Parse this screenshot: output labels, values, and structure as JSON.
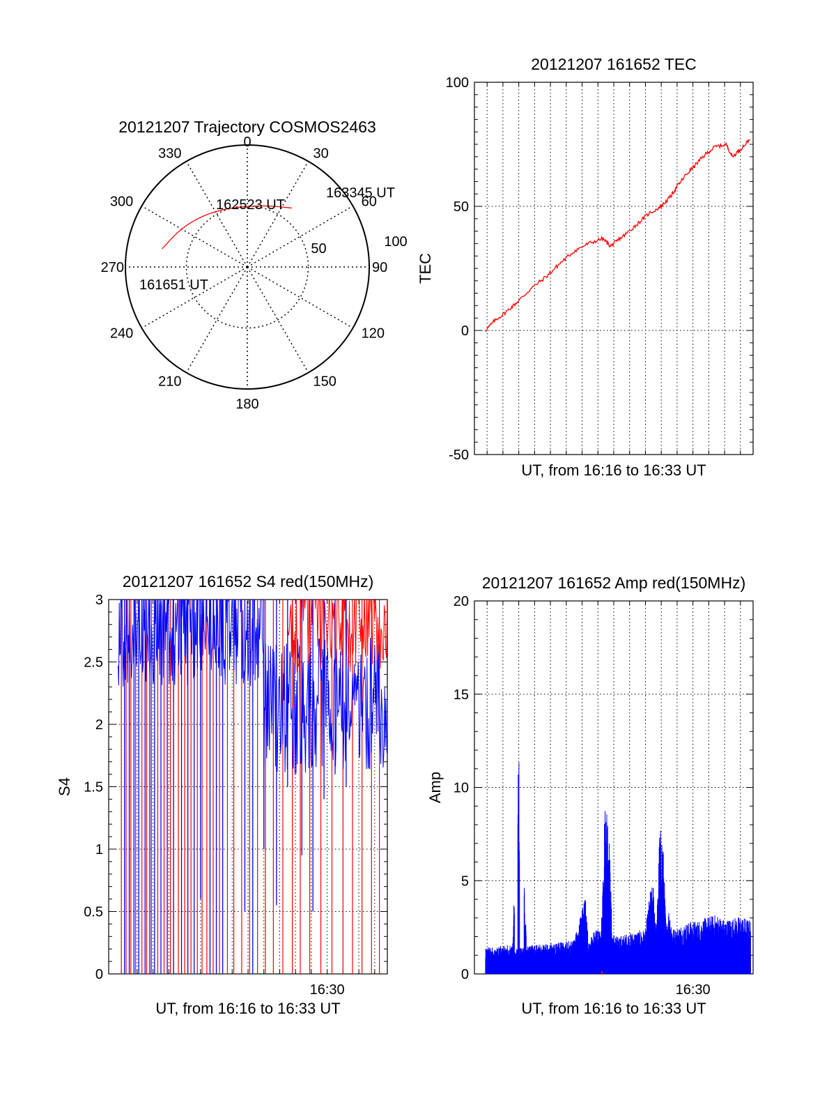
{
  "chart_data": [
    {
      "type": "polar",
      "title": "20121207 Trajectory COSMOS2463",
      "azimuth_labels": [
        "0",
        "30",
        "60",
        "90",
        "120",
        "150",
        "180",
        "210",
        "240",
        "270",
        "300",
        "330"
      ],
      "radial_labels": [
        "50",
        "100"
      ],
      "radial_max": 100,
      "trajectory_color": "#ff0000",
      "trajectory": [
        {
          "az": 282,
          "r": 71.5,
          "label": "161651 UT"
        },
        {
          "az": 300,
          "r": 63
        },
        {
          "az": 318,
          "r": 56
        },
        {
          "az": 336,
          "r": 51.5
        },
        {
          "az": 352,
          "r": 49.5
        },
        {
          "az": 2,
          "r": 49.8,
          "label": "162523 UT"
        },
        {
          "az": 15,
          "r": 52
        },
        {
          "az": 28,
          "r": 56
        },
        {
          "az": 37,
          "r": 60.5,
          "label": "163345 UT"
        }
      ]
    },
    {
      "type": "line",
      "title": "20121207 161652 TEC",
      "xlabel": "UT, from 16:16 to 16:33 UT",
      "ylabel": "TEC",
      "ylim": [
        -50,
        100
      ],
      "yticks": [
        "-50",
        "0",
        "50",
        "100"
      ],
      "xlim": [
        16.2,
        33.8
      ],
      "grid": true,
      "series": [
        {
          "color": "#ff0000",
          "x": [
            16.9,
            17.5,
            18.3,
            19.0,
            19.8,
            20.8,
            21.6,
            22.5,
            23.4,
            24.3,
            24.8,
            25.2,
            25.8,
            26.5,
            27.2,
            28.0,
            28.6,
            29.0,
            29.6,
            30.2,
            30.8,
            31.4,
            32.1,
            32.5,
            33.0,
            33.6
          ],
          "y": [
            0,
            4,
            8,
            12,
            17,
            22,
            27,
            32,
            35,
            37,
            34,
            36,
            39,
            43,
            47,
            50,
            54,
            58,
            63,
            67,
            71,
            74,
            75,
            70,
            73,
            77
          ]
        }
      ]
    },
    {
      "type": "line",
      "title": "20121207 161652 S4 red(150MHz)",
      "xlabel": "UT, from 16:16 to 16:33 UT",
      "ylabel": "S4",
      "ylim": [
        0,
        3
      ],
      "yticks": [
        "0",
        "0.5",
        "1",
        "1.5",
        "2",
        "2.5",
        "3"
      ],
      "xlim": [
        16.2,
        33.8
      ],
      "xticks": [
        "16:30"
      ],
      "grid": true,
      "series": [
        {
          "color": "#ff0000",
          "spikes_x": [
            17.0,
            17.3,
            17.6,
            17.9,
            18.3,
            18.6,
            18.9,
            19.3,
            19.7,
            20.1,
            20.6,
            21.0,
            21.4,
            21.8,
            22.1,
            22.4,
            22.8,
            23.2,
            23.7,
            24.1,
            24.6,
            25.1,
            25.6,
            26.1,
            26.6,
            27.2,
            27.8,
            28.3,
            28.9,
            29.6,
            30.3,
            31.0,
            31.6,
            32.2,
            32.8,
            33.3
          ]
        },
        {
          "color": "#0000ff",
          "dips_x": [
            17.2,
            17.5,
            17.8,
            18.1,
            18.5,
            18.8,
            19.1,
            19.5,
            19.9,
            20.3,
            20.8,
            21.2,
            21.6,
            22.0,
            22.6,
            23.0,
            23.4,
            24.8,
            25.3,
            26.0,
            26.8,
            27.5,
            28.4,
            29.1,
            29.8,
            30.5,
            31.2
          ],
          "min_values": [
            0,
            0,
            0,
            0,
            0,
            0,
            0,
            0,
            0,
            0,
            0,
            0,
            0,
            0.6,
            0,
            0,
            0,
            0.5,
            0,
            1.0,
            0.55,
            1.5,
            0.95,
            0.5,
            1.4,
            1.6,
            1.5
          ]
        }
      ]
    },
    {
      "type": "line",
      "title": "20121207 161652 Amp red(150MHz)",
      "xlabel": "UT, from 16:16 to 16:33 UT",
      "ylabel": "Amp",
      "ylim": [
        0,
        20
      ],
      "yticks": [
        "0",
        "5",
        "10",
        "15",
        "20"
      ],
      "xlim": [
        16.2,
        33.8
      ],
      "xticks": [
        "16:30"
      ],
      "grid": true,
      "series": [
        {
          "color": "#0000ff",
          "x": [
            16.9,
            17.5,
            18.2,
            18.6,
            19.0,
            19.5,
            20.5,
            21.5,
            22.5,
            23.0,
            23.2,
            23.4,
            23.6,
            23.8,
            24.2,
            24.4,
            24.5,
            24.6,
            24.7,
            24.9,
            25.2,
            26.0,
            26.5,
            27.0,
            27.3,
            27.5,
            27.7,
            27.9,
            28.1,
            28.3,
            28.5,
            28.7,
            28.9,
            29.2,
            29.8,
            30.5,
            31.0,
            31.5,
            32.0,
            32.5,
            33.0,
            33.6
          ],
          "y": [
            1.5,
            1.4,
            1.6,
            1.5,
            12,
            1.5,
            1.6,
            1.7,
            1.8,
            3.5,
            4.2,
            1.8,
            2.0,
            2.5,
            2.2,
            8.5,
            9.7,
            9.0,
            8.0,
            2.3,
            2.0,
            2.2,
            2.3,
            2.4,
            4.5,
            4.8,
            2.5,
            7.9,
            7.5,
            2.6,
            3.6,
            2.5,
            2.4,
            2.6,
            2.8,
            2.9,
            3.1,
            3.2,
            2.9,
            3.0,
            3.1,
            2.9
          ]
        }
      ]
    }
  ]
}
